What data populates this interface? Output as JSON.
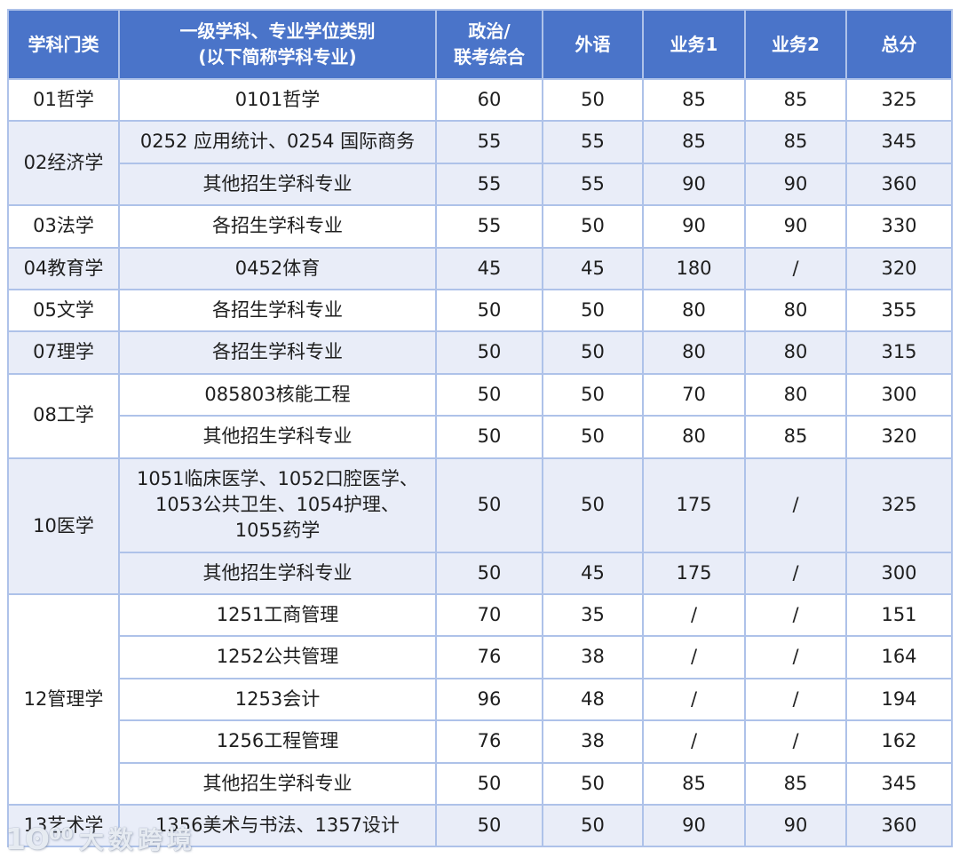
{
  "colors": {
    "header_bg": "#4A74C9",
    "header_text": "#FFFFFF",
    "stripe_bg": "#E9EDF8",
    "row_bg": "#FFFFFF",
    "cell_border": "#AEC2E9",
    "outer_border": "#8BA4D9",
    "body_text": "#1E1E1E"
  },
  "watermark": {
    "logo": "1ʘ⁰⁰",
    "text": "大数跨境"
  },
  "table": {
    "headers": {
      "category": "学科门类",
      "discipline_line1": "一级学科、专业学位类别",
      "discipline_line2": "(以下简称学科专业)",
      "politics_line1": "政治/",
      "politics_line2": "联考综合",
      "foreign": "外语",
      "business1": "业务1",
      "business2": "业务2",
      "total": "总分"
    },
    "groups": [
      {
        "category": "01哲学",
        "shaded": false,
        "rows": [
          {
            "discipline": "0101哲学",
            "politics": "60",
            "foreign": "50",
            "business1": "85",
            "business2": "85",
            "total": "325"
          }
        ]
      },
      {
        "category": "02经济学",
        "shaded": true,
        "rows": [
          {
            "discipline": "0252 应用统计、0254 国际商务",
            "politics": "55",
            "foreign": "55",
            "business1": "85",
            "business2": "85",
            "total": "345"
          },
          {
            "discipline": "其他招生学科专业",
            "politics": "55",
            "foreign": "55",
            "business1": "90",
            "business2": "90",
            "total": "360"
          }
        ]
      },
      {
        "category": "03法学",
        "shaded": false,
        "rows": [
          {
            "discipline": "各招生学科专业",
            "politics": "55",
            "foreign": "50",
            "business1": "90",
            "business2": "90",
            "total": "330"
          }
        ]
      },
      {
        "category": "04教育学",
        "shaded": true,
        "rows": [
          {
            "discipline": "0452体育",
            "politics": "45",
            "foreign": "45",
            "business1": "180",
            "business2": "/",
            "total": "320"
          }
        ]
      },
      {
        "category": "05文学",
        "shaded": false,
        "rows": [
          {
            "discipline": "各招生学科专业",
            "politics": "50",
            "foreign": "50",
            "business1": "80",
            "business2": "80",
            "total": "355"
          }
        ]
      },
      {
        "category": "07理学",
        "shaded": true,
        "rows": [
          {
            "discipline": "各招生学科专业",
            "politics": "50",
            "foreign": "50",
            "business1": "80",
            "business2": "80",
            "total": "315"
          }
        ]
      },
      {
        "category": "08工学",
        "shaded": false,
        "rows": [
          {
            "discipline": "085803核能工程",
            "politics": "50",
            "foreign": "50",
            "business1": "70",
            "business2": "80",
            "total": "300"
          },
          {
            "discipline": "其他招生学科专业",
            "politics": "50",
            "foreign": "50",
            "business1": "80",
            "business2": "85",
            "total": "320"
          }
        ]
      },
      {
        "category": "10医学",
        "shaded": true,
        "rows": [
          {
            "discipline": "1051临床医学、1052口腔医学、\n1053公共卫生、1054护理、\n1055药学",
            "politics": "50",
            "foreign": "50",
            "business1": "175",
            "business2": "/",
            "total": "325"
          },
          {
            "discipline": "其他招生学科专业",
            "politics": "50",
            "foreign": "45",
            "business1": "175",
            "business2": "/",
            "total": "300"
          }
        ]
      },
      {
        "category": "12管理学",
        "shaded": false,
        "rows": [
          {
            "discipline": "1251工商管理",
            "politics": "70",
            "foreign": "35",
            "business1": "/",
            "business2": "/",
            "total": "151"
          },
          {
            "discipline": "1252公共管理",
            "politics": "76",
            "foreign": "38",
            "business1": "/",
            "business2": "/",
            "total": "164"
          },
          {
            "discipline": "1253会计",
            "politics": "96",
            "foreign": "48",
            "business1": "/",
            "business2": "/",
            "total": "194"
          },
          {
            "discipline": "1256工程管理",
            "politics": "76",
            "foreign": "38",
            "business1": "/",
            "business2": "/",
            "total": "162"
          },
          {
            "discipline": "其他招生学科专业",
            "politics": "50",
            "foreign": "50",
            "business1": "85",
            "business2": "85",
            "total": "345"
          }
        ]
      },
      {
        "category": "13艺术学",
        "shaded": true,
        "rows": [
          {
            "discipline": "1356美术与书法、1357设计",
            "politics": "50",
            "foreign": "50",
            "business1": "90",
            "business2": "90",
            "total": "360"
          }
        ]
      }
    ]
  }
}
